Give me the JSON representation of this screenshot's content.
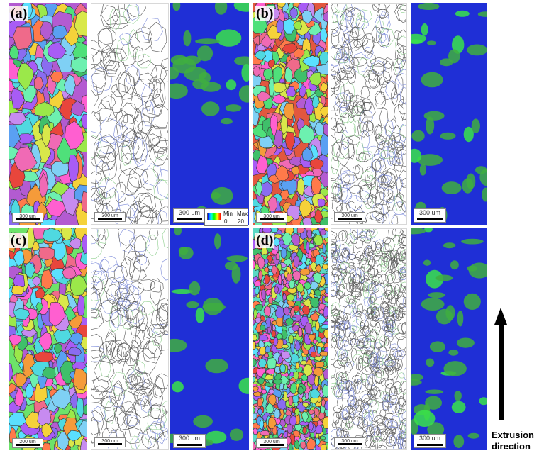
{
  "labels": {
    "a": "(a)",
    "b": "(b)",
    "c": "(c)",
    "d": "(d)"
  },
  "scale_bars": {
    "small": "300 um",
    "small_c": "200 um",
    "big": "300 um"
  },
  "legend": {
    "min_label": "Min",
    "max_label": "Max",
    "min_value": "0",
    "max_value": "20"
  },
  "arrow_caption": {
    "line1": "Extrusion",
    "line2": "direction"
  },
  "colors": {
    "kam_background": "#1f2fd6",
    "kam_highlight": "#3fae3f",
    "kam_highlight_bright": "#39e34a",
    "gb_line": "#555555",
    "gb_low_angle": "#7c8bd9",
    "gb_twin": "#8fcf8f"
  },
  "icons": [
    "arrow-up-icon"
  ]
}
